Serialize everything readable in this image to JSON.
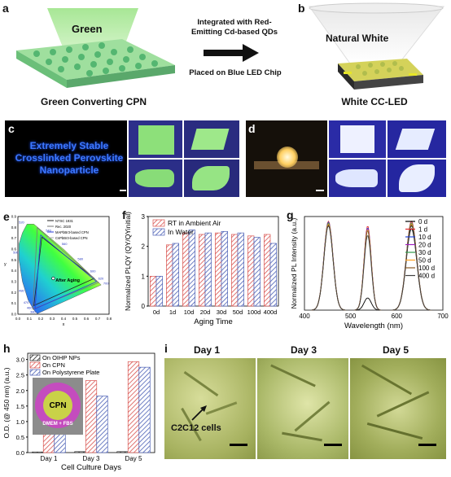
{
  "panels": {
    "a": "a",
    "b": "b",
    "c": "c",
    "d": "d",
    "e": "e",
    "f": "f",
    "g": "g",
    "h": "h",
    "i": "i"
  },
  "schematic": {
    "green_label": "Green",
    "arrow_top": "Integrated with Red-\nEmitting Cd-based QDs",
    "arrow_bottom": "Placed on Blue LED Chip",
    "caption_a": "Green Converting CPN",
    "natural_white": "Natural White",
    "caption_b": "White CC-LED"
  },
  "photo_c": {
    "text": "Extremely Stable\nCrosslinked Perovskite\nNanoparticle"
  },
  "cie": {
    "legend": [
      "NTSC 1931",
      "Rec. 2020",
      "MAPbBr3-based CPN",
      "CsPbBr3-based CPN"
    ],
    "annotation": "After Aging",
    "x_ticks": [
      "0.0",
      "0.1",
      "0.2",
      "0.3",
      "0.4",
      "0.5",
      "0.6",
      "0.7",
      "0.8"
    ],
    "y_ticks": [
      "0.0",
      "0.1",
      "0.2",
      "0.3",
      "0.4",
      "0.5",
      "0.6",
      "0.7",
      "0.8",
      "0.9"
    ],
    "xlabel": "x",
    "ylabel": "y",
    "wavelength_labels": [
      "520",
      "540",
      "560",
      "580",
      "600",
      "620",
      "700",
      "500",
      "480",
      "470",
      "460",
      "380"
    ]
  },
  "micro": {
    "days": [
      "Day 1",
      "Day 3",
      "Day 5"
    ],
    "cells_label": "C2C12 cells"
  },
  "inset_h": {
    "cpn": "CPN",
    "medium": "DMEM + FBS"
  },
  "colors": {
    "red_series": "#d9534f",
    "blue_series": "#4a5fb5",
    "black_series": "#222222"
  },
  "chart_data": [
    {
      "type": "bar",
      "panel": "f",
      "categories": [
        "0d",
        "1d",
        "10d",
        "20d",
        "30d",
        "50d",
        "100d",
        "400d"
      ],
      "series": [
        {
          "name": "RT in Ambient Air",
          "values": [
            1.0,
            2.05,
            2.45,
            2.4,
            2.45,
            2.4,
            2.35,
            2.4
          ]
        },
        {
          "name": "In Water",
          "values": [
            1.0,
            2.1,
            2.55,
            2.45,
            2.5,
            2.45,
            2.3,
            2.1
          ]
        }
      ],
      "xlabel": "Aging Time",
      "ylabel": "Normalized PLQY (QY/QYinitial)",
      "ylim": [
        0,
        3
      ],
      "yticks": [
        0,
        1,
        2,
        3
      ]
    },
    {
      "type": "line",
      "panel": "g",
      "x_range": [
        400,
        700
      ],
      "xticks": [
        400,
        500,
        600,
        700
      ],
      "peaks_nm": [
        452,
        537,
        632
      ],
      "series": [
        {
          "name": "0 d",
          "heights": [
            0.92,
            0.13,
            0.87
          ],
          "color": "#000000"
        },
        {
          "name": "1 d",
          "heights": [
            0.95,
            0.9,
            0.95
          ],
          "color": "#e0282e"
        },
        {
          "name": "10 d",
          "heights": [
            0.94,
            0.88,
            0.93
          ],
          "color": "#2848d8"
        },
        {
          "name": "20 d",
          "heights": [
            0.93,
            0.87,
            0.92
          ],
          "color": "#a020c0"
        },
        {
          "name": "30 d",
          "heights": [
            0.93,
            0.86,
            0.93
          ],
          "color": "#2e9a4a"
        },
        {
          "name": "50 d",
          "heights": [
            0.92,
            0.86,
            0.92
          ],
          "color": "#ffa020"
        },
        {
          "name": "100 d",
          "heights": [
            0.91,
            0.85,
            0.91
          ],
          "color": "#8a5a20"
        },
        {
          "name": "400 d",
          "heights": [
            0.9,
            0.8,
            0.9
          ],
          "color": "#404040"
        }
      ],
      "xlabel": "Wavelength (nm)",
      "ylabel": "Normalized PL Intensity (a.u.)"
    },
    {
      "type": "bar",
      "panel": "h",
      "categories": [
        "Day 1",
        "Day 3",
        "Day 5"
      ],
      "series": [
        {
          "name": "On OIHP NPs",
          "values": [
            0.02,
            0.03,
            0.03
          ]
        },
        {
          "name": "On CPN",
          "values": [
            0.73,
            2.32,
            2.93
          ]
        },
        {
          "name": "On Polystyrene Plate",
          "values": [
            0.68,
            1.82,
            2.75
          ]
        }
      ],
      "xlabel": "Cell Culture Days",
      "ylabel": "O.D. (@ 450 nm) (a.u.)",
      "ylim": [
        0,
        3.2
      ],
      "yticks": [
        "0.0",
        "0.5",
        "1.0",
        "1.5",
        "2.0",
        "2.5",
        "3.0"
      ]
    }
  ]
}
